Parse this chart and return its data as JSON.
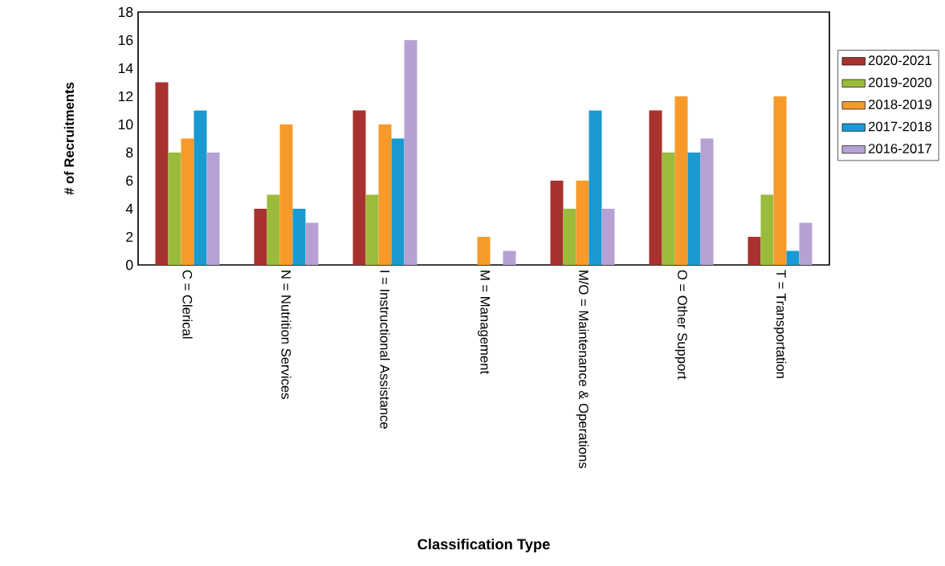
{
  "chart_data": {
    "type": "bar",
    "xlabel": "Classification Type",
    "ylabel": "# of Recruitments",
    "categories": [
      "C = Clerical",
      "N = Nutrition Services",
      "I = Instructional Assistance",
      "M = Management",
      "M/O = Maintenance & Operations",
      "O = Other Support",
      "T = Transportation"
    ],
    "series": [
      {
        "name": "2020-2021",
        "color": "#a8322d",
        "values": [
          13,
          4,
          11,
          0,
          6,
          11,
          2
        ]
      },
      {
        "name": "2019-2020",
        "color": "#9bbb3b",
        "values": [
          8,
          5,
          5,
          0,
          4,
          8,
          5
        ]
      },
      {
        "name": "2018-2019",
        "color": "#f79a2a",
        "values": [
          9,
          10,
          10,
          2,
          6,
          12,
          12
        ]
      },
      {
        "name": "2017-2018",
        "color": "#1a9ad0",
        "values": [
          11,
          4,
          9,
          0,
          11,
          8,
          1
        ]
      },
      {
        "name": "2016-2017",
        "color": "#b7a1d4",
        "values": [
          8,
          3,
          16,
          1,
          4,
          9,
          3
        ]
      }
    ],
    "ylim": [
      0,
      18
    ],
    "yticks": [
      0,
      2,
      4,
      6,
      8,
      10,
      12,
      14,
      16,
      18
    ],
    "legend": "right",
    "grid": false
  }
}
